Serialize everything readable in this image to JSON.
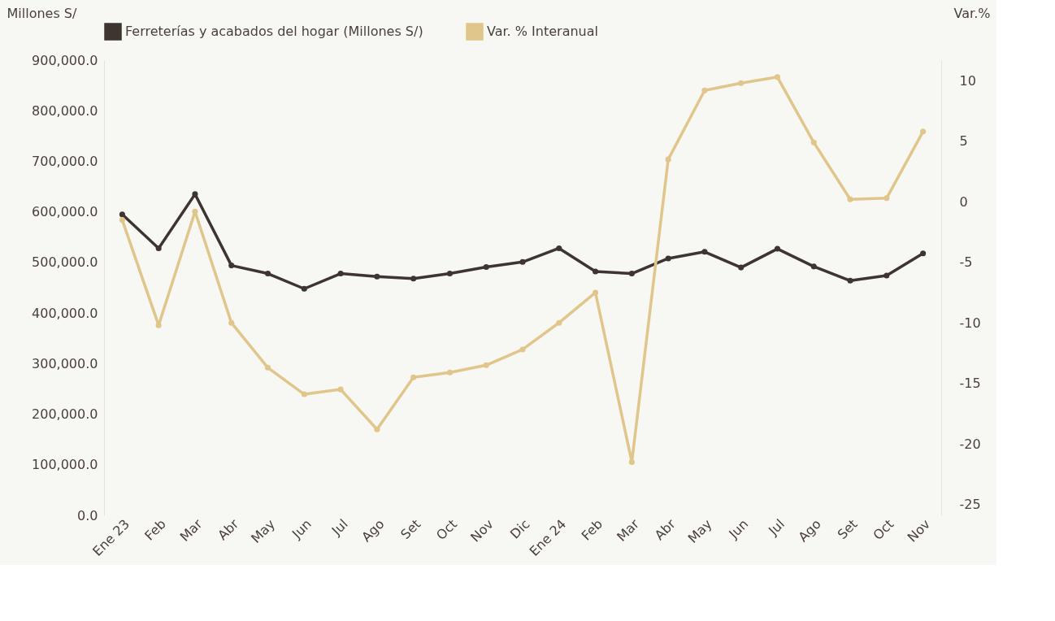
{
  "chart_data": {
    "type": "line",
    "categories": [
      "Ene 23",
      "Feb",
      "Mar",
      "Abr",
      "May",
      "Jun",
      "Jul",
      "Ago",
      "Set",
      "Oct",
      "Nov",
      "Dic",
      "Ene 24",
      "Feb",
      "Mar",
      "Abr",
      "May",
      "Jun",
      "Jul",
      "Ago",
      "Set",
      "Oct",
      "Nov"
    ],
    "ylabel": "Millones S/",
    "y2label": "Var.%",
    "series": [
      {
        "name": "Ferreterías y acabados del hogar (Millones S/)",
        "color": "#3e3430",
        "values": [
          595000,
          528000,
          635000,
          494000,
          478000,
          448000,
          478000,
          472000,
          468000,
          478000,
          491000,
          501000,
          528000,
          482000,
          478000,
          508000,
          521000,
          490000,
          527000,
          492000,
          464000,
          474000,
          518000
        ]
      },
      {
        "name": "Var. % Interanual",
        "color": "#e0c68a",
        "axis": "y2",
        "values": [
          -1.5,
          -10.2,
          -0.8,
          -10.0,
          -13.7,
          -15.9,
          -15.5,
          -18.8,
          -14.5,
          -14.1,
          -13.5,
          -12.2,
          -10.0,
          -7.5,
          -21.5,
          3.5,
          9.2,
          9.8,
          10.3,
          4.9,
          0.2,
          0.3,
          5.8
        ]
      }
    ],
    "ylim": [
      0,
      900000
    ],
    "yticks": [
      {
        "value": 0,
        "label": "0.0"
      },
      {
        "value": 100000,
        "label": "100,000.0"
      },
      {
        "value": 200000,
        "label": "200,000.0"
      },
      {
        "value": 300000,
        "label": "300,000.0"
      },
      {
        "value": 400000,
        "label": "400,000.0"
      },
      {
        "value": 500000,
        "label": "500,000.0"
      },
      {
        "value": 600000,
        "label": "600,000.0"
      },
      {
        "value": 700000,
        "label": "700,000.0"
      },
      {
        "value": 800000,
        "label": "800,000.0"
      },
      {
        "value": 900000,
        "label": "900,000.0"
      }
    ],
    "y2lim": [
      -25.9,
      11.7
    ],
    "y2ticks": [
      -25,
      -20,
      -15,
      -10,
      -5,
      0,
      5,
      10
    ],
    "legend": "top",
    "grid": false,
    "marker": "circle",
    "line_style": "solid"
  }
}
